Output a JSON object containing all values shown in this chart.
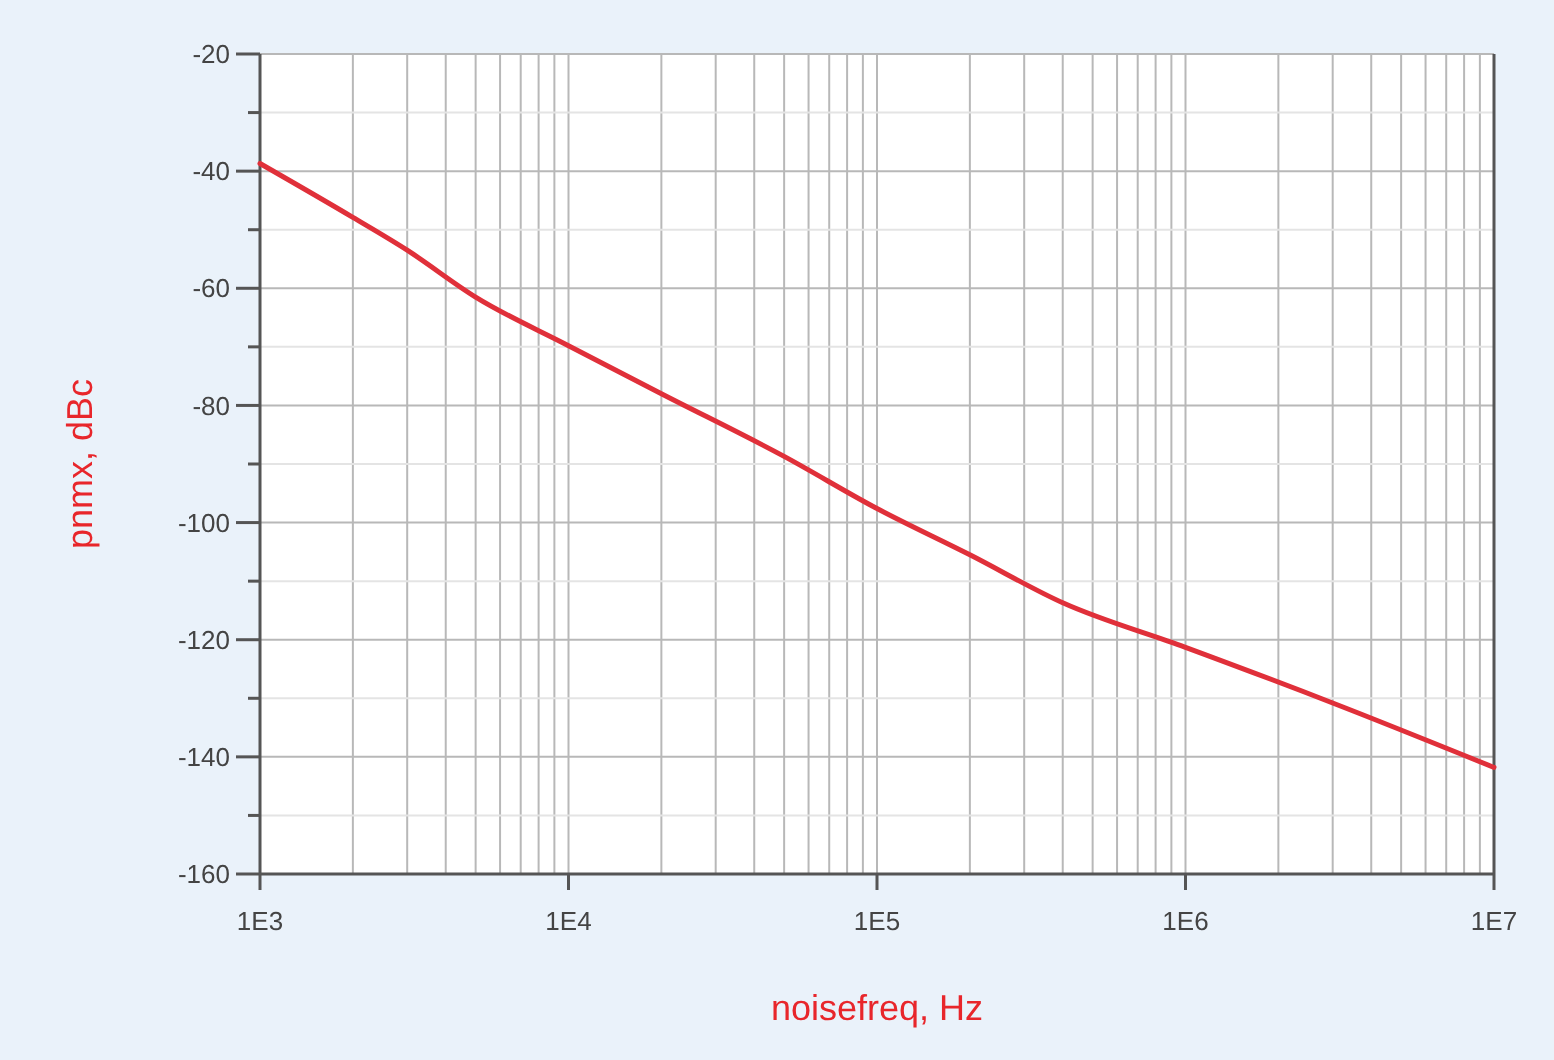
{
  "chart_data": {
    "type": "line",
    "xlabel": "noisefreq, Hz",
    "ylabel": "pnmx, dBc",
    "log": "x",
    "grid": true,
    "marker": "none",
    "line_style": "solid",
    "xlim": [
      1000,
      10000000
    ],
    "xticks": [
      {
        "value": 1000,
        "label": "1E3"
      },
      {
        "value": 2000,
        "label": null
      },
      {
        "value": 3000,
        "label": null
      },
      {
        "value": 4000,
        "label": null
      },
      {
        "value": 5000,
        "label": null
      },
      {
        "value": 6000,
        "label": null
      },
      {
        "value": 7000,
        "label": null
      },
      {
        "value": 8000,
        "label": null
      },
      {
        "value": 9000,
        "label": null
      },
      {
        "value": 10000,
        "label": "1E4"
      },
      {
        "value": 20000,
        "label": null
      },
      {
        "value": 30000,
        "label": null
      },
      {
        "value": 40000,
        "label": null
      },
      {
        "value": 50000,
        "label": null
      },
      {
        "value": 60000,
        "label": null
      },
      {
        "value": 70000,
        "label": null
      },
      {
        "value": 80000,
        "label": null
      },
      {
        "value": 90000,
        "label": null
      },
      {
        "value": 100000,
        "label": "1E5"
      },
      {
        "value": 200000,
        "label": null
      },
      {
        "value": 300000,
        "label": null
      },
      {
        "value": 400000,
        "label": null
      },
      {
        "value": 500000,
        "label": null
      },
      {
        "value": 600000,
        "label": null
      },
      {
        "value": 700000,
        "label": null
      },
      {
        "value": 800000,
        "label": null
      },
      {
        "value": 900000,
        "label": null
      },
      {
        "value": 1000000,
        "label": "1E6"
      },
      {
        "value": 2000000,
        "label": null
      },
      {
        "value": 3000000,
        "label": null
      },
      {
        "value": 4000000,
        "label": null
      },
      {
        "value": 5000000,
        "label": null
      },
      {
        "value": 6000000,
        "label": null
      },
      {
        "value": 7000000,
        "label": null
      },
      {
        "value": 8000000,
        "label": null
      },
      {
        "value": 9000000,
        "label": null
      },
      {
        "value": 10000000,
        "label": "1E7"
      }
    ],
    "ylim": [
      -160,
      -20
    ],
    "yticks": [
      -20,
      {
        "value": -30,
        "label": null
      },
      -40,
      {
        "value": -50,
        "label": null
      },
      -60,
      {
        "value": -70,
        "label": null
      },
      -80,
      {
        "value": -90,
        "label": null
      },
      -100,
      {
        "value": -110,
        "label": null
      },
      -120,
      {
        "value": -130,
        "label": null
      },
      -140,
      {
        "value": -150,
        "label": null
      },
      -160
    ],
    "x": [
      1000,
      2000,
      3000,
      5000,
      10000,
      20000,
      50000,
      100000,
      200000,
      400000,
      1000000,
      3000000,
      10000000
    ],
    "series": [
      {
        "color": "#e0303a",
        "values": [
          -38.7,
          -47.9,
          -53.5,
          -61.5,
          -69.8,
          -78,
          -88.7,
          -97.6,
          -105.5,
          -113.7,
          -121.3,
          -130.8,
          -141.8
        ]
      }
    ]
  }
}
